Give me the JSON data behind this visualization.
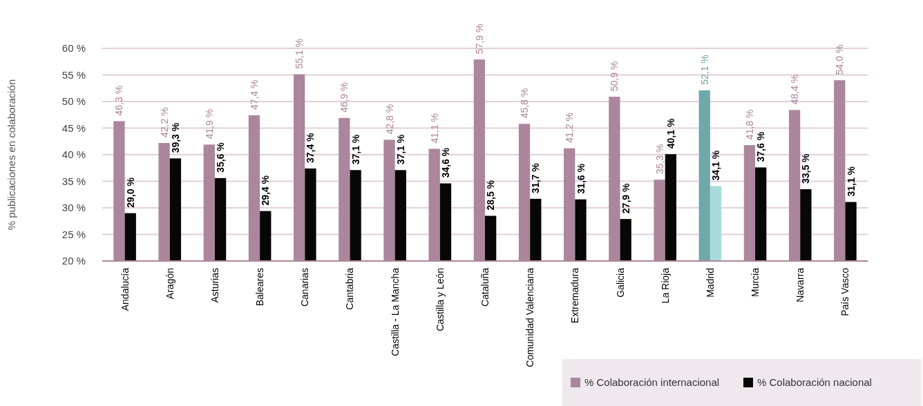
{
  "chart_data": {
    "type": "bar",
    "ylabel": "% publicaciones en colaboración",
    "categories": [
      "Andalucía",
      "Aragón",
      "Asturias",
      "Baleares",
      "Canarias",
      "Cantabria",
      "Castilla - La Mancha",
      "Castilla y León",
      "Cataluña",
      "Comunidad  Valenciana",
      "Extremadura",
      "Galicia",
      "La Rioja",
      "Madrid",
      "Murcia",
      "Navarra",
      "País Vasco"
    ],
    "series": [
      {
        "name": "% Colaboración internacional",
        "color": "#ab869c",
        "colors": [
          "#ab869c",
          "#ab869c",
          "#ab869c",
          "#ab869c",
          "#ab869c",
          "#ab869c",
          "#ab869c",
          "#ab869c",
          "#ab869c",
          "#ab869c",
          "#ab869c",
          "#ab869c",
          "#ab869c",
          "#6fa8a8",
          "#ab869c",
          "#ab869c",
          "#ab869c"
        ],
        "values": [
          46.3,
          42.2,
          41.9,
          47.4,
          55.1,
          46.9,
          42.8,
          41.1,
          57.9,
          45.8,
          41.2,
          50.9,
          35.3,
          52.1,
          41.8,
          48.4,
          54.0
        ],
        "value_labels": [
          "46,3 %",
          "42,2 %",
          "41,9 %",
          "47,4 %",
          "55,1 %",
          "46,9 %",
          "42,8 %",
          "41,1 %",
          "57,9 %",
          "45,8 %",
          "41,2 %",
          "50,9 %",
          "35,3 %",
          "52,1 %",
          "41,8 %",
          "48,4 %",
          "54,0 %"
        ]
      },
      {
        "name": "% Colaboración nacional",
        "color": "#070806",
        "colors": [
          "#070806",
          "#070806",
          "#070806",
          "#070806",
          "#070806",
          "#070806",
          "#070806",
          "#070806",
          "#070806",
          "#070806",
          "#070806",
          "#070806",
          "#070806",
          "#a8dcdc",
          "#070806",
          "#070806",
          "#070806"
        ],
        "values": [
          29.0,
          39.3,
          35.6,
          29.4,
          37.4,
          37.1,
          37.1,
          34.6,
          28.5,
          31.7,
          31.6,
          27.9,
          40.1,
          34.1,
          37.6,
          33.5,
          31.1
        ],
        "value_labels": [
          "29,0 %",
          "39,3 %",
          "35,6 %",
          "29,4 %",
          "37,4 %",
          "37,1 %",
          "37,1 %",
          "34,6 %",
          "28,5 %",
          "31,7 %",
          "31,6 %",
          "27,9 %",
          "40,1 %",
          "34,1 %",
          "37,6 %",
          "33,5 %",
          "31,1 %"
        ]
      }
    ],
    "ylim": [
      20,
      60
    ],
    "yticks": [
      {
        "value": 20,
        "label": "20 %"
      },
      {
        "value": 25,
        "label": "25 %"
      },
      {
        "value": 30,
        "label": "30 %"
      },
      {
        "value": 35,
        "label": "35 %"
      },
      {
        "value": 40,
        "label": "40 %"
      },
      {
        "value": 45,
        "label": "45 %"
      },
      {
        "value": 50,
        "label": "50 %"
      },
      {
        "value": 55,
        "label": "55 %"
      },
      {
        "value": 60,
        "label": "60 %"
      }
    ],
    "grid": "y",
    "legend": "bottom right"
  }
}
